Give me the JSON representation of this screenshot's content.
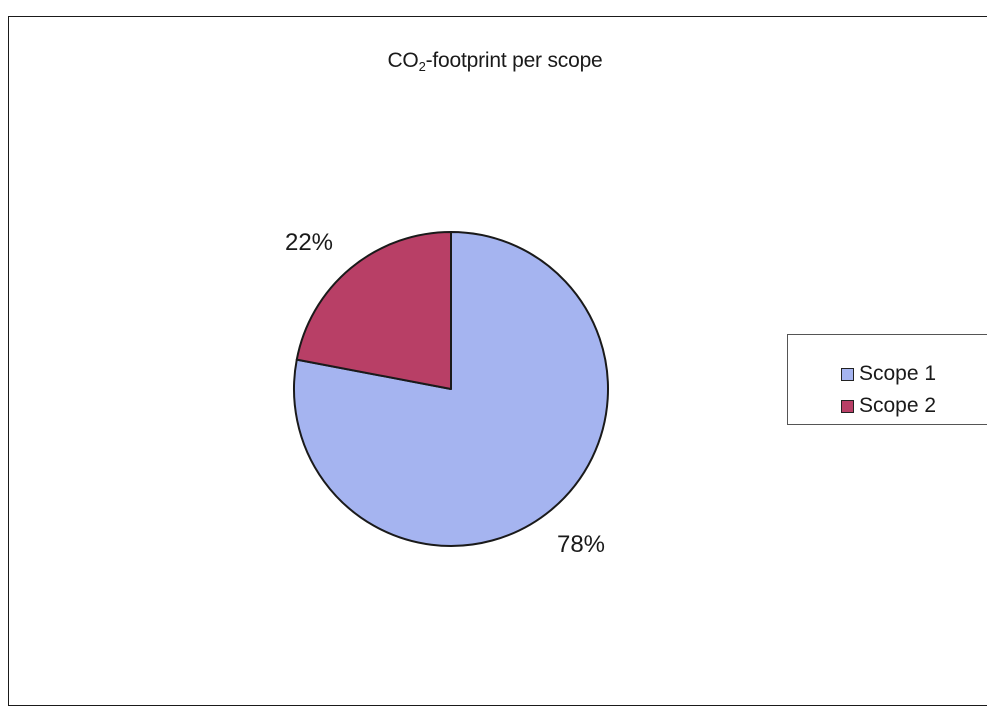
{
  "chart_data": {
    "type": "pie",
    "title": {
      "main": "CO",
      "subscript": "2",
      "rest": "-footprint per scope"
    },
    "categories": [
      "Scope 1",
      "Scope 2"
    ],
    "values": [
      78,
      22
    ],
    "data_labels": [
      "78%",
      "22%"
    ],
    "colors": [
      "#a5b4f0",
      "#b83f66"
    ],
    "legend_position": "right"
  }
}
